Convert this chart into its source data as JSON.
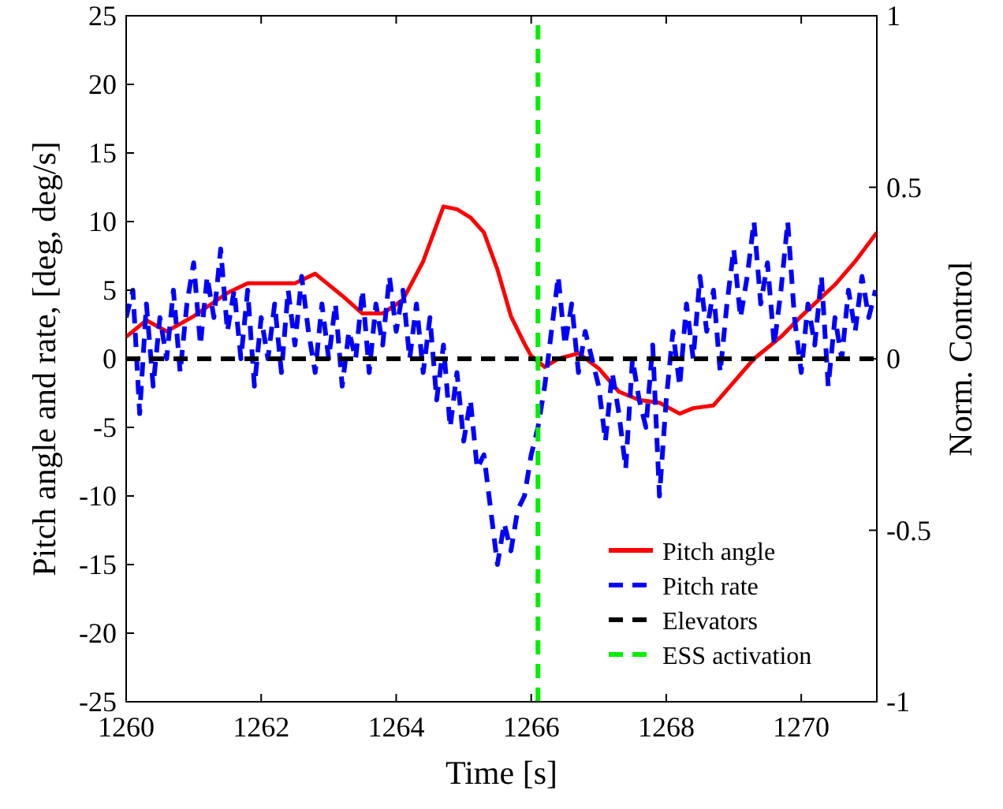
{
  "chart_data": {
    "type": "line",
    "xlabel": "Time [s]",
    "ylabel": "Pitch angle and rate, [deg, deg/s]",
    "y2label": "Norm. Control",
    "xlim": [
      1260,
      1271.12
    ],
    "xticks": [
      1260,
      1262,
      1264,
      1266,
      1268,
      1270
    ],
    "ylim": [
      -25,
      25
    ],
    "yticks": [
      -25,
      -20,
      -15,
      -10,
      -5,
      0,
      5,
      10,
      15,
      20,
      25
    ],
    "y2lim": [
      -1,
      1
    ],
    "y2ticks": [
      -1,
      -0.5,
      0,
      0.5,
      1
    ],
    "legend": "bottom right",
    "grid": false,
    "x": [
      1260.0,
      1260.1,
      1260.2,
      1260.3,
      1260.4,
      1260.5,
      1260.6,
      1260.7,
      1260.8,
      1260.9,
      1261.0,
      1261.1,
      1261.2,
      1261.3,
      1261.4,
      1261.5,
      1261.6,
      1261.7,
      1261.8,
      1261.9,
      1262.0,
      1262.1,
      1262.2,
      1262.3,
      1262.4,
      1262.5,
      1262.6,
      1262.7,
      1262.8,
      1262.9,
      1263.0,
      1263.1,
      1263.2,
      1263.3,
      1263.4,
      1263.5,
      1263.6,
      1263.7,
      1263.8,
      1263.9,
      1264.0,
      1264.1,
      1264.2,
      1264.3,
      1264.4,
      1264.5,
      1264.6,
      1264.7,
      1264.8,
      1264.9,
      1265.0,
      1265.1,
      1265.2,
      1265.3,
      1265.4,
      1265.5,
      1265.6,
      1265.7,
      1265.8,
      1265.9,
      1266.0,
      1266.1,
      1266.2,
      1266.3,
      1266.4,
      1266.5,
      1266.6,
      1266.7,
      1266.8,
      1266.9,
      1267.0,
      1267.1,
      1267.2,
      1267.3,
      1267.4,
      1267.5,
      1267.6,
      1267.7,
      1267.8,
      1267.9,
      1268.0,
      1268.1,
      1268.2,
      1268.3,
      1268.4,
      1268.5,
      1268.6,
      1268.7,
      1268.8,
      1268.9,
      1269.0,
      1269.1,
      1269.2,
      1269.3,
      1269.4,
      1269.5,
      1269.6,
      1269.7,
      1269.8,
      1269.9,
      1270.0,
      1270.1,
      1270.2,
      1270.3,
      1270.4,
      1270.5,
      1270.6,
      1270.7,
      1270.8,
      1270.9,
      1271.0,
      1271.1
    ],
    "series": [
      {
        "name": "Pitch angle",
        "color": "#ff0000",
        "line_style": "solid",
        "x": [
          1260,
          1260.3,
          1260.6,
          1261,
          1261.5,
          1261.8,
          1262.5,
          1262.8,
          1263.2,
          1263.5,
          1263.8,
          1264.1,
          1264.4,
          1264.7,
          1264.9,
          1265.1,
          1265.3,
          1265.5,
          1265.7,
          1265.9,
          1266,
          1266.2,
          1266.4,
          1266.7,
          1267,
          1267.3,
          1267.6,
          1267.9,
          1268.2,
          1268.4,
          1268.7,
          1269,
          1269.3,
          1269.7,
          1270,
          1270.5,
          1270.8,
          1271.12
        ],
        "values": [
          1.6,
          2.8,
          2,
          3.1,
          4.8,
          5.5,
          5.5,
          6.2,
          4.6,
          3.3,
          3.3,
          4.3,
          7.1,
          11.1,
          10.9,
          10.3,
          9.2,
          6.5,
          3.1,
          1.1,
          0.2,
          -0.6,
          0,
          0.4,
          -0.7,
          -2.4,
          -3,
          -3.2,
          -4,
          -3.6,
          -3.4,
          -1.7,
          0,
          1.6,
          3.1,
          5.4,
          7.1,
          9.2
        ]
      },
      {
        "name": "Pitch rate",
        "color": "#0000ff",
        "line_style": "dashed",
        "values": [
          3,
          5,
          -4,
          4,
          -2,
          3,
          0,
          5,
          -1,
          4,
          7,
          1,
          6,
          3,
          8,
          2,
          5,
          0,
          5,
          -2,
          3,
          0,
          4,
          -1,
          5,
          1,
          6,
          2,
          -1,
          4,
          0,
          4,
          -2,
          2,
          0,
          5,
          -1,
          4,
          1,
          6,
          2,
          5,
          0,
          4,
          -1,
          3,
          -3,
          1,
          -5,
          -1,
          -6,
          -3,
          -8,
          -7,
          -11,
          -15,
          -12,
          -14,
          -11,
          -10,
          -7,
          -5,
          -2,
          2,
          6,
          1,
          4,
          -1,
          2,
          0,
          -2,
          -6,
          -1,
          -4,
          -8,
          0,
          -3,
          -5,
          1,
          -10,
          -3,
          2,
          -2,
          4,
          0,
          6,
          2,
          5,
          -1,
          4,
          8,
          3,
          6,
          10,
          4,
          7,
          1,
          5,
          10,
          3,
          -1,
          4,
          1,
          6,
          -2,
          3,
          0,
          5,
          2,
          6,
          3,
          5
        ]
      },
      {
        "name": "Elevators",
        "color": "#000000",
        "line_style": "dashed",
        "x": [
          1260,
          1271.12
        ],
        "values": [
          0,
          0
        ]
      },
      {
        "name": "ESS activation",
        "color": "#00ee00",
        "line_style": "dashed",
        "x": [
          1266.1,
          1266.1
        ],
        "values": [
          -25,
          25
        ]
      }
    ]
  }
}
